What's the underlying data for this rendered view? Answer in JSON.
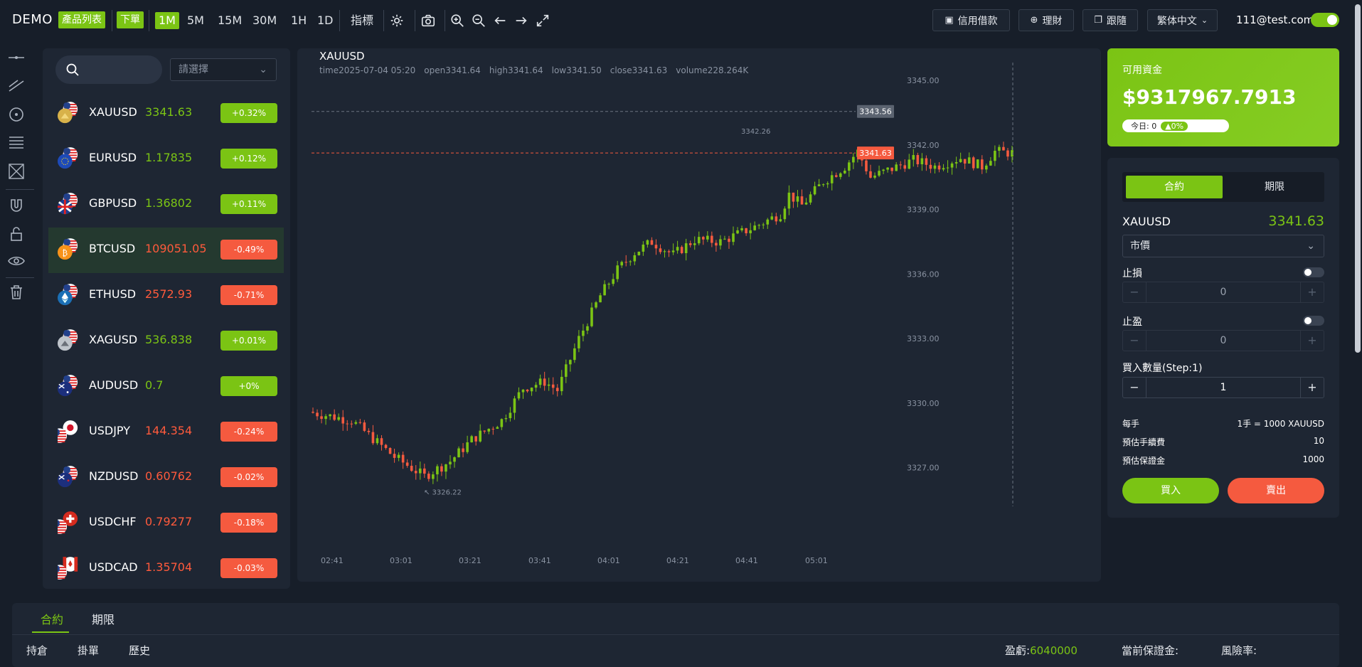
{
  "topbar": {
    "brand": "DEMO",
    "product_list": "產品列表",
    "place_order": "下單",
    "timeframes": [
      "1M",
      "5M",
      "15M",
      "30M",
      "1H",
      "1D"
    ],
    "indicators": "指標",
    "credit_loan": "信用借款",
    "wealth": "理財",
    "follow": "跟隨",
    "language": "繁体中文",
    "email": "111@test.com"
  },
  "sidebar": {
    "select_placeholder": "請選擇",
    "symbols": [
      {
        "symbol": "XAUUSD",
        "price": "3341.63",
        "change": "+0.32%",
        "dir": "up",
        "flag": "gold"
      },
      {
        "symbol": "EURUSD",
        "price": "1.17835",
        "change": "+0.12%",
        "dir": "up",
        "flag": "eu"
      },
      {
        "symbol": "GBPUSD",
        "price": "1.36802",
        "change": "+0.11%",
        "dir": "up",
        "flag": "gb"
      },
      {
        "symbol": "BTCUSD",
        "price": "109051.05",
        "change": "-0.49%",
        "dir": "dn",
        "flag": "btc"
      },
      {
        "symbol": "ETHUSD",
        "price": "2572.93",
        "change": "-0.71%",
        "dir": "dn",
        "flag": "eth"
      },
      {
        "symbol": "XAGUSD",
        "price": "536.838",
        "change": "+0.01%",
        "dir": "up",
        "flag": "silver"
      },
      {
        "symbol": "AUDUSD",
        "price": "0.7",
        "change": "+0%",
        "dir": "up",
        "flag": "au"
      },
      {
        "symbol": "USDJPY",
        "price": "144.354",
        "change": "-0.24%",
        "dir": "dn",
        "flag": "jp"
      },
      {
        "symbol": "NZDUSD",
        "price": "0.60762",
        "change": "-0.02%",
        "dir": "dn",
        "flag": "nz"
      },
      {
        "symbol": "USDCHF",
        "price": "0.79277",
        "change": "-0.18%",
        "dir": "dn",
        "flag": "ch"
      },
      {
        "symbol": "USDCAD",
        "price": "1.35704",
        "change": "-0.03%",
        "dir": "dn",
        "flag": "ca"
      }
    ]
  },
  "chart": {
    "title": "XAUUSD",
    "ohlc": {
      "time": "time2025-07-04 05:20",
      "open": "open3341.64",
      "high": "high3341.64",
      "low": "low3341.50",
      "close": "close3341.63",
      "volume": "volume228.264K"
    },
    "y_ticks": [
      "3345.00",
      "3342.00",
      "3339.00",
      "3336.00",
      "3333.00",
      "3330.00",
      "3327.00"
    ],
    "x_ticks": [
      "02:41",
      "03:01",
      "03:21",
      "03:41",
      "04:01",
      "04:21",
      "04:41",
      "05:01"
    ],
    "crosshair_label": "3343.56",
    "last_price_label": "3341.63",
    "high_label": "3342.26",
    "low_label": "3326.22",
    "colors": {
      "up": "#7bc414",
      "down": "#f55a3f"
    }
  },
  "chart_data": {
    "type": "candlestick",
    "title": "XAUUSD",
    "x_ticks": [
      "02:41",
      "03:01",
      "03:21",
      "03:41",
      "04:01",
      "04:21",
      "04:41",
      "05:01"
    ],
    "ylim": [
      3326,
      3345.5
    ],
    "y_ticks": [
      3345,
      3342,
      3339,
      3336,
      3333,
      3330,
      3327
    ],
    "start": 3329.6,
    "end": 3341.63,
    "min": 3326.22,
    "max": 3342.26,
    "last": 3341.63,
    "crosshair": 3343.56
  },
  "account": {
    "label": "可用資金",
    "balance": "$9317967.7913",
    "today": "今日: 0",
    "today_pct": "0%"
  },
  "order": {
    "tab_contract": "合約",
    "tab_futures": "期限",
    "symbol": "XAUUSD",
    "price": "3341.63",
    "order_type": "市價",
    "stop_loss": "止損",
    "stop_loss_value": "0",
    "take_profit": "止盈",
    "take_profit_value": "0",
    "qty_label": "買入數量(Step:1)",
    "qty_value": "1",
    "per_lot_label": "每手",
    "per_lot_value": "1手 = 1000 XAUUSD",
    "fee_label": "預估手續費",
    "fee_value": "10",
    "margin_label": "預估保證金",
    "margin_value": "1000",
    "buy": "買入",
    "sell": "賣出"
  },
  "bottom": {
    "tab_contract": "合約",
    "tab_futures": "期限",
    "sub_holdings": "持倉",
    "sub_pending": "掛單",
    "sub_history": "歷史",
    "pnl_label": "盈虧:",
    "pnl_value": "6040000",
    "margin_label": "當前保證金:",
    "risk_label": "風險率:"
  }
}
